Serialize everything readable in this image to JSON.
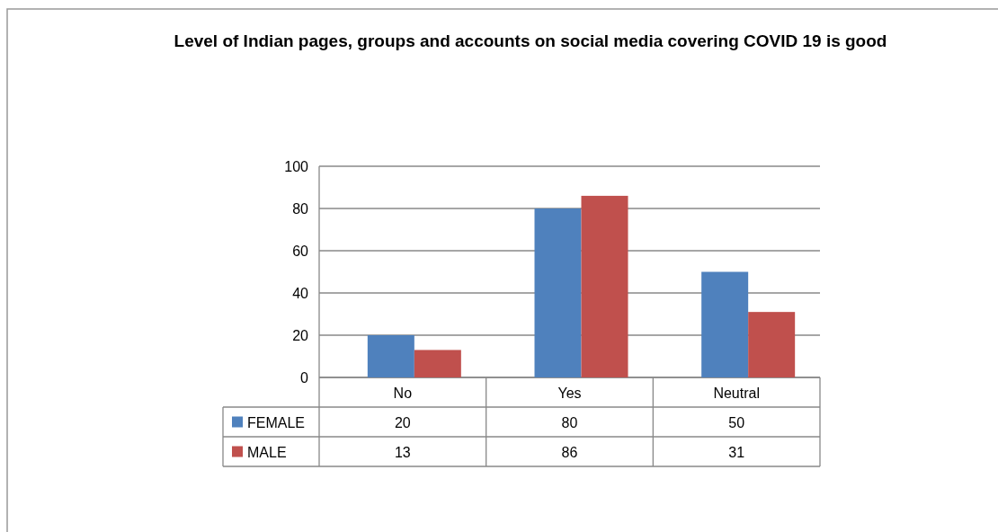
{
  "chart_data": {
    "type": "bar",
    "title": "Level of Indian pages, groups and accounts on social media covering COVID 19 is good",
    "categories": [
      "No",
      "Yes",
      "Neutral"
    ],
    "series": [
      {
        "name": "FEMALE",
        "color": "#4f81bd",
        "values": [
          20,
          80,
          50
        ]
      },
      {
        "name": "MALE",
        "color": "#c0504d",
        "values": [
          13,
          86,
          31
        ]
      }
    ],
    "ylim": [
      0,
      100
    ],
    "yticks": [
      0,
      20,
      40,
      60,
      80,
      100
    ],
    "grid": "y",
    "data_labels": true,
    "legend": "bottom left"
  }
}
